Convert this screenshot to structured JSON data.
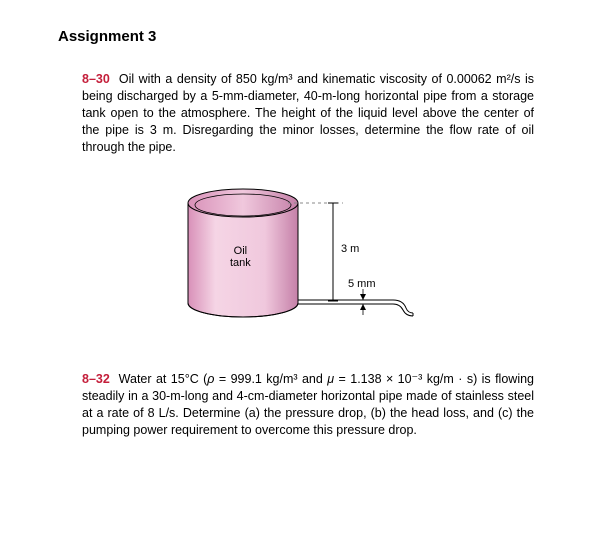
{
  "title": "Assignment 3",
  "p1": {
    "num": "8–30",
    "text": "Oil with a density of 850 kg/m³ and kinematic viscosity of 0.00062 m²/s is being discharged by a 5-mm-diameter, 40-m-long horizontal pipe from a storage tank open to the atmosphere. The height of the liquid level above the center of the pipe is 3 m. Disregarding the minor losses, determine the flow rate of oil through the pipe."
  },
  "figure": {
    "tank_label_top": "Oil",
    "tank_label_bottom": "tank",
    "height_label": "3 m",
    "pipe_label": "5 mm",
    "colors": {
      "tank_top_fill": "#e8a8c5",
      "tank_body_light": "#f5d5e5",
      "tank_body_dark": "#d890b8",
      "tank_stroke": "#000000",
      "dashed_stroke": "#888888"
    }
  },
  "p2": {
    "num": "8–32",
    "text_html": "Water at 15°C (<i>ρ</i> = 999.1 kg/m³ and <i>μ</i> = 1.138 × 10⁻³ kg/m · s) is flowing steadily in a 30-m-long and 4-cm-diameter horizontal pipe made of stainless steel at a rate of 8 L/s. Determine (a) the pressure drop, (b) the head loss, and (c) the pumping power requirement to overcome this pressure drop."
  }
}
